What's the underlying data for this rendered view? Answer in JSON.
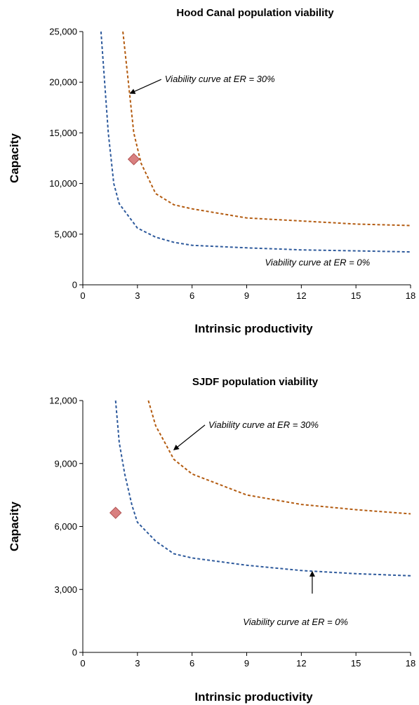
{
  "chart_data": [
    {
      "type": "line",
      "title": "Hood Canal population viability",
      "xlabel": "Intrinsic productivity",
      "ylabel": "Capacity",
      "xlim": [
        0,
        18
      ],
      "ylim": [
        0,
        25000
      ],
      "x_ticks": [
        0,
        3,
        6,
        9,
        12,
        15,
        18
      ],
      "y_ticks": [
        0,
        5000,
        10000,
        15000,
        20000,
        25000
      ],
      "x_tick_labels": [
        "0",
        "3",
        "6",
        "9",
        "12",
        "15",
        "18"
      ],
      "y_tick_labels": [
        "0",
        "5,000",
        "10,000",
        "15,000",
        "20,000",
        "25,000"
      ],
      "grid": false,
      "series": [
        {
          "color": "#2e5a9c",
          "style": "dashed",
          "points": [
            [
              1.0,
              25000
            ],
            [
              1.2,
              20000
            ],
            [
              1.4,
              15000
            ],
            [
              1.7,
              10000
            ],
            [
              2.0,
              8000
            ],
            [
              3.0,
              5600
            ],
            [
              4.0,
              4700
            ],
            [
              5.0,
              4200
            ],
            [
              6.0,
              3900
            ],
            [
              9.0,
              3650
            ],
            [
              12.0,
              3450
            ],
            [
              15.0,
              3350
            ],
            [
              18.0,
              3250
            ]
          ]
        },
        {
          "color": "#b35b10",
          "style": "dashed",
          "points": [
            [
              2.2,
              25000
            ],
            [
              2.5,
              20000
            ],
            [
              2.8,
              15000
            ],
            [
              3.2,
              12000
            ],
            [
              4.0,
              9000
            ],
            [
              5.0,
              7900
            ],
            [
              6.0,
              7500
            ],
            [
              9.0,
              6600
            ],
            [
              12.0,
              6300
            ],
            [
              15.0,
              6000
            ],
            [
              18.0,
              5850
            ]
          ]
        }
      ],
      "point": {
        "x": 2.8,
        "y": 12400,
        "color": "#d98080",
        "stroke": "#b05050",
        "marker": "diamond"
      },
      "annotations": [
        {
          "text": "Viability curve at ER = 30%",
          "x": 4.5,
          "y": 20000,
          "arrow_to": [
            2.6,
            18900
          ]
        },
        {
          "text": "Viability curve at ER = 0%",
          "x": 10.0,
          "y": 1900
        }
      ]
    },
    {
      "type": "line",
      "title": "SJDF population viability",
      "xlabel": "Intrinsic productivity",
      "ylabel": "Capacity",
      "xlim": [
        0,
        18
      ],
      "ylim": [
        0,
        12000
      ],
      "x_ticks": [
        0,
        3,
        6,
        9,
        12,
        15,
        18
      ],
      "y_ticks": [
        0,
        3000,
        6000,
        9000,
        12000
      ],
      "x_tick_labels": [
        "0",
        "3",
        "6",
        "9",
        "12",
        "15",
        "18"
      ],
      "y_tick_labels": [
        "0",
        "3,000",
        "6,000",
        "9,000",
        "12,000"
      ],
      "grid": false,
      "series": [
        {
          "color": "#2e5a9c",
          "style": "dashed",
          "points": [
            [
              1.8,
              12000
            ],
            [
              2.0,
              10000
            ],
            [
              2.3,
              8500
            ],
            [
              2.7,
              7000
            ],
            [
              3.0,
              6200
            ],
            [
              4.0,
              5300
            ],
            [
              5.0,
              4700
            ],
            [
              6.0,
              4500
            ],
            [
              9.0,
              4150
            ],
            [
              12.0,
              3900
            ],
            [
              15.0,
              3750
            ],
            [
              18.0,
              3650
            ]
          ]
        },
        {
          "color": "#b35b10",
          "style": "dashed",
          "points": [
            [
              3.6,
              12000
            ],
            [
              4.0,
              10800
            ],
            [
              4.5,
              10000
            ],
            [
              5.0,
              9200
            ],
            [
              6.0,
              8500
            ],
            [
              9.0,
              7500
            ],
            [
              12.0,
              7050
            ],
            [
              15.0,
              6800
            ],
            [
              18.0,
              6600
            ]
          ]
        }
      ],
      "point": {
        "x": 1.8,
        "y": 6650,
        "color": "#d98080",
        "stroke": "#b05050",
        "marker": "diamond"
      },
      "annotations": [
        {
          "text": "Viability curve at ER = 30%",
          "x": 6.9,
          "y": 10700,
          "arrow_to": [
            5.0,
            9650
          ]
        },
        {
          "text": "Viability curve at ER = 0%",
          "x": 8.8,
          "y": 1300,
          "arrow_up": [
            12.6,
            2800,
            12.6,
            3850
          ]
        }
      ]
    }
  ]
}
